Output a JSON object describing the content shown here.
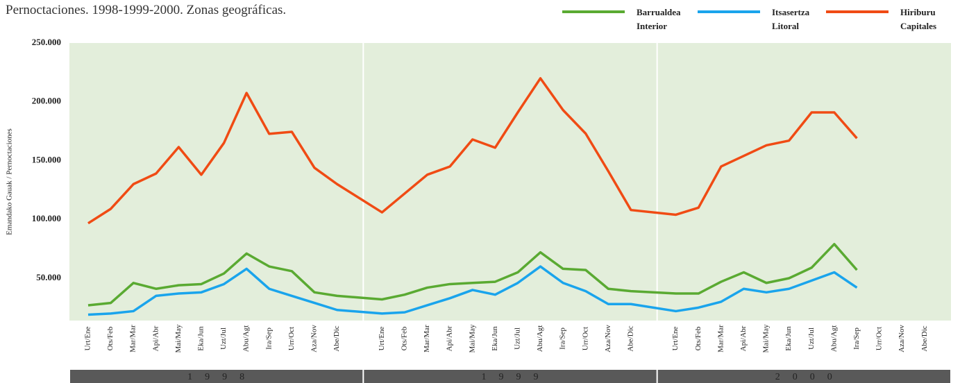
{
  "chart_data": {
    "type": "line",
    "title": "Pernoctaciones. 1998-1999-2000. Zonas geográficas.",
    "y_label": "Emandako Gauak / Pernoctaciones",
    "year_labels": [
      "1998",
      "1999",
      "2000"
    ],
    "categories": [
      "Urt/Ene",
      "Ots/Feb",
      "Mar/Mar",
      "Api/Abr",
      "Mai/May",
      "Eka/Jun",
      "Uzt/Jul",
      "Abu/Agt",
      "Ira/Sep",
      "Urr/Oct",
      "Aza/Nov",
      "Abe/Dic",
      "Urt/Ene",
      "Ots/Feb",
      "Mar/Mar",
      "Api/Abr",
      "Mai/May",
      "Eka/Jun",
      "Uzt/Jul",
      "Abu/Agt",
      "Ira/Sep",
      "Urr/Oct",
      "Aza/Nov",
      "Abe/Dic",
      "Urt/Ene",
      "Ots/Feb",
      "Mar/Mar",
      "Api/Abr",
      "Mai/May",
      "Eka/Jun",
      "Uzt/Jul",
      "Abu/Agt",
      "Ira/Sep",
      "Urr/Oct",
      "Aza/Nov",
      "Abe/Dic"
    ],
    "series": [
      {
        "name": "Barrualdea Interior",
        "color": "#5aaa32",
        "values": [
          27000,
          29000,
          46000,
          41000,
          44000,
          45000,
          54000,
          71000,
          60000,
          56000,
          38000,
          35000,
          32000,
          36000,
          42000,
          45000,
          46000,
          47000,
          55000,
          72000,
          58000,
          57000,
          41000,
          39000,
          37000,
          37000,
          47000,
          55000,
          46000,
          50000,
          59000,
          79000,
          57000,
          null,
          null,
          null
        ]
      },
      {
        "name": "Itsasertza Litoral",
        "color": "#1aa4ec",
        "values": [
          19000,
          20000,
          22000,
          35000,
          37000,
          38000,
          45000,
          58000,
          41000,
          35000,
          29000,
          23000,
          20000,
          21000,
          27000,
          33000,
          40000,
          36000,
          46000,
          60000,
          46000,
          39000,
          28000,
          28000,
          22000,
          25000,
          30000,
          41000,
          38000,
          41000,
          48000,
          55000,
          42000,
          null,
          null,
          null
        ]
      },
      {
        "name": "Hiriburu Capitales",
        "color": "#f04b14",
        "values": [
          96700,
          109000,
          130000,
          139000,
          161500,
          138000,
          165000,
          207500,
          172800,
          174500,
          143900,
          130000,
          106000,
          122000,
          138000,
          145000,
          168000,
          161000,
          191000,
          220000,
          193000,
          173000,
          141000,
          108000,
          104000,
          110000,
          145000,
          154000,
          163000,
          167000,
          191000,
          191000,
          169000,
          null,
          null,
          null
        ]
      }
    ],
    "ylim": [
      14000,
      250000
    ],
    "yticks": [
      {
        "value": 50000,
        "label": "50.000"
      },
      {
        "value": 100000,
        "label": "100.000"
      },
      {
        "value": 150000,
        "label": "150.000"
      },
      {
        "value": 200000,
        "label": "200.000"
      },
      {
        "value": 250000,
        "label": "250.000"
      }
    ]
  }
}
